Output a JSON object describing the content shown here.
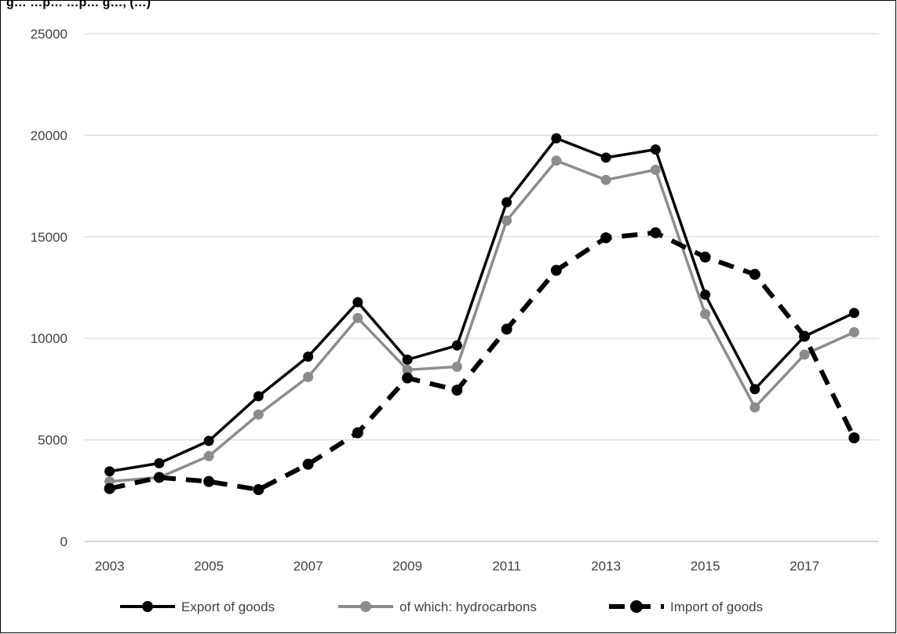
{
  "chart_data": {
    "type": "line",
    "title": "g… …p… …p… g…, (…)",
    "x": [
      2003,
      2004,
      2005,
      2006,
      2007,
      2008,
      2009,
      2010,
      2011,
      2012,
      2013,
      2014,
      2015,
      2016,
      2017,
      2018
    ],
    "x_tick_labels": [
      "2003",
      "2005",
      "2007",
      "2009",
      "2011",
      "2013",
      "2015",
      "2017"
    ],
    "x_tick_values": [
      2003,
      2005,
      2007,
      2009,
      2011,
      2013,
      2015,
      2017
    ],
    "xlim": [
      2002.5,
      2018.5
    ],
    "y_tick_labels": [
      "0",
      "5000",
      "10000",
      "15000",
      "20000",
      "25000"
    ],
    "y_tick_values": [
      0,
      5000,
      10000,
      15000,
      20000,
      25000
    ],
    "ylim": [
      0,
      25000
    ],
    "grid": "horizontal",
    "legend_position": "bottom",
    "series": [
      {
        "name": "Export of goods",
        "color": "#000000",
        "dash": "solid",
        "values": [
          3450,
          3850,
          4950,
          7150,
          9100,
          11780,
          8950,
          9650,
          16700,
          19850,
          18900,
          19300,
          12150,
          7500,
          10100,
          11250
        ]
      },
      {
        "name": "of which: hydrocarbons",
        "color": "#8c8c8c",
        "dash": "solid",
        "values": [
          2950,
          3150,
          4200,
          6250,
          8100,
          11000,
          8450,
          8600,
          15800,
          18750,
          17800,
          18300,
          11200,
          6600,
          9200,
          10300
        ]
      },
      {
        "name": "Import of goods",
        "color": "#000000",
        "dash": "dashed",
        "values": [
          2600,
          3150,
          2950,
          2550,
          3800,
          5350,
          8050,
          7450,
          10450,
          13350,
          14950,
          15200,
          14000,
          13150,
          10100,
          5100
        ]
      }
    ]
  }
}
